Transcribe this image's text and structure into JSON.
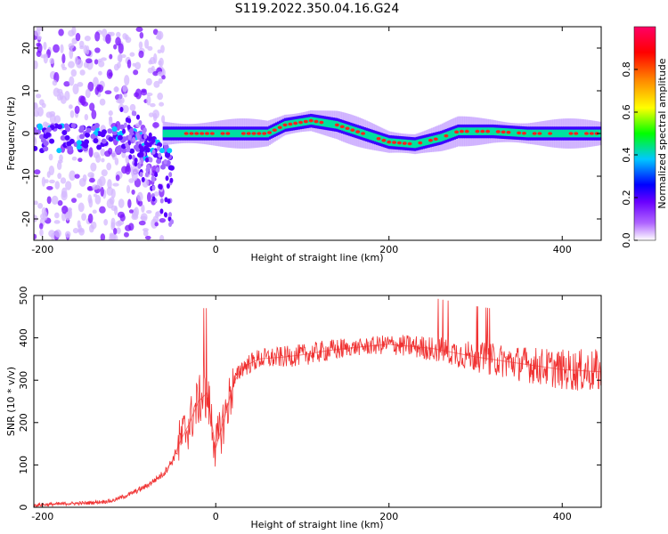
{
  "title": "S119.2022.350.04.16.G24",
  "chart_data": [
    {
      "type": "heatmap",
      "xlabel": "Height of straight line (km)",
      "ylabel": "Frequency (Hz)",
      "xlim": [
        -210,
        445
      ],
      "ylim": [
        -25,
        25
      ],
      "xticks": [
        -200,
        0,
        200,
        400
      ],
      "yticks": [
        -20,
        -10,
        0,
        10,
        20
      ],
      "grid": false,
      "colorbar": {
        "label": "Normalized spectral amplitude",
        "range": [
          0,
          1
        ],
        "ticks": [
          "0.0",
          "0.2",
          "0.4",
          "0.6",
          "0.8"
        ],
        "colors": [
          "#ffffff",
          "#b066ff",
          "#6a00ff",
          "#0000ff",
          "#00c8ff",
          "#00ff00",
          "#ffff00",
          "#ff8800",
          "#ff0000",
          "#ff0066"
        ]
      },
      "ridge": {
        "x": [
          -60,
          -40,
          0,
          60,
          80,
          110,
          140,
          170,
          200,
          230,
          260,
          280,
          320,
          360,
          400,
          445
        ],
        "y": [
          0,
          0,
          0,
          0,
          2,
          3,
          2,
          0,
          -2,
          -2.5,
          -1,
          0.5,
          0.5,
          0,
          0,
          0
        ]
      }
    },
    {
      "type": "line",
      "xlabel": "Height of straight line (km)",
      "ylabel": "SNR (10 * v/v)",
      "xlim": [
        -210,
        445
      ],
      "ylim": [
        0,
        500
      ],
      "xticks": [
        -200,
        0,
        200,
        400
      ],
      "yticks": [
        0,
        100,
        200,
        300,
        400,
        500
      ],
      "grid": false,
      "series": [
        {
          "color": "#f03030",
          "x": [
            -210,
            -180,
            -150,
            -120,
            -100,
            -80,
            -60,
            -50,
            -40,
            -30,
            -20,
            -10,
            0,
            10,
            20,
            30,
            50,
            80,
            100,
            130,
            150,
            200,
            250,
            300,
            350,
            400,
            445
          ],
          "y": [
            5,
            8,
            10,
            15,
            30,
            50,
            80,
            110,
            160,
            200,
            250,
            270,
            140,
            210,
            290,
            330,
            350,
            355,
            360,
            370,
            375,
            385,
            375,
            355,
            340,
            325,
            320
          ]
        }
      ]
    }
  ]
}
